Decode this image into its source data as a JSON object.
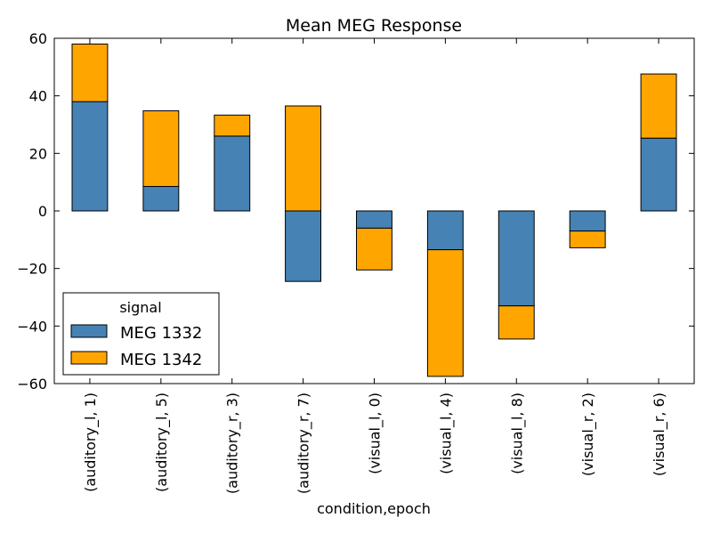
{
  "chart_data": {
    "type": "bar",
    "stacked": true,
    "title": "Mean MEG Response",
    "xlabel": "condition,epoch",
    "ylabel": "",
    "ylim": [
      -60,
      60
    ],
    "yticks": [
      -60,
      -40,
      -20,
      0,
      20,
      40,
      60
    ],
    "categories": [
      "(auditory_l, 1)",
      "(auditory_l, 5)",
      "(auditory_r, 3)",
      "(auditory_r, 7)",
      "(visual_l, 0)",
      "(visual_l, 4)",
      "(visual_l, 8)",
      "(visual_r, 2)",
      "(visual_r, 6)"
    ],
    "series": [
      {
        "name": "MEG 1332",
        "color": "#4682b4",
        "values": [
          38,
          8.5,
          26,
          -24.5,
          -6,
          -13.5,
          -33,
          -7,
          25.3
        ]
      },
      {
        "name": "MEG 1342",
        "color": "#ffa500",
        "values": [
          20,
          26.3,
          7.3,
          36.5,
          -14.5,
          -44,
          -11.5,
          -5.8,
          22.3
        ]
      }
    ],
    "legend": {
      "title": "signal",
      "position": "lower-left"
    },
    "grid": false
  }
}
